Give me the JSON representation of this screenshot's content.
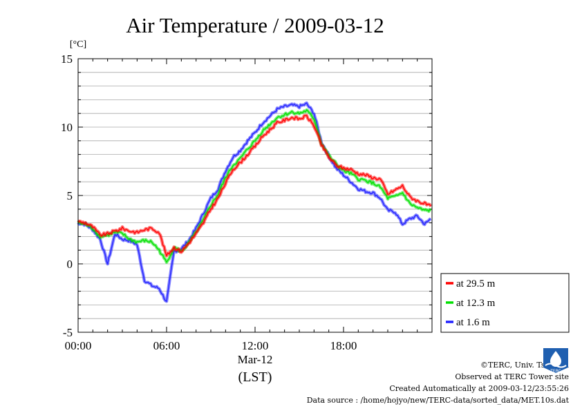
{
  "chart_data": {
    "type": "line",
    "title": "Air Temperature / 2009-03-12",
    "ylabel": "[°C]",
    "xlabel": "Mar-12",
    "xunit": "(LST)",
    "ylim": [
      -5,
      15
    ],
    "yticks": [
      "15",
      "10",
      "5",
      "0",
      "-5"
    ],
    "xlim": [
      "00:00",
      "24:00"
    ],
    "xticks": [
      "00:00",
      "06:00",
      "12:00",
      "18:00"
    ],
    "grid": true,
    "legend_position": "right",
    "x": [
      "00:00",
      "00:30",
      "01:00",
      "01:30",
      "02:00",
      "02:30",
      "03:00",
      "03:30",
      "04:00",
      "04:30",
      "05:00",
      "05:30",
      "06:00",
      "06:30",
      "07:00",
      "07:30",
      "08:00",
      "08:30",
      "09:00",
      "09:30",
      "10:00",
      "10:30",
      "11:00",
      "11:30",
      "12:00",
      "12:30",
      "13:00",
      "13:30",
      "14:00",
      "14:30",
      "15:00",
      "15:30",
      "16:00",
      "16:30",
      "17:00",
      "17:30",
      "18:00",
      "18:30",
      "19:00",
      "19:30",
      "20:00",
      "20:30",
      "21:00",
      "21:30",
      "22:00",
      "22:30",
      "23:00",
      "23:30",
      "23:55"
    ],
    "series": [
      {
        "name": "at 29.5 m",
        "color": "#ff0000",
        "values": [
          3.1,
          3.0,
          2.7,
          2.1,
          2.2,
          2.4,
          2.6,
          2.4,
          2.3,
          2.5,
          2.6,
          2.3,
          0.6,
          1.2,
          0.9,
          1.5,
          2.2,
          3.0,
          4.0,
          4.8,
          5.9,
          6.9,
          7.4,
          8.0,
          8.6,
          9.3,
          9.8,
          10.3,
          10.5,
          10.7,
          10.6,
          10.8,
          10.1,
          8.7,
          7.8,
          7.2,
          7.0,
          6.9,
          6.6,
          6.5,
          6.3,
          6.2,
          5.1,
          5.4,
          5.7,
          4.9,
          4.6,
          4.4,
          4.2
        ]
      },
      {
        "name": "at 12.3 m",
        "color": "#00e000",
        "values": [
          3.0,
          2.9,
          2.6,
          2.0,
          2.1,
          2.3,
          2.2,
          1.8,
          1.6,
          1.7,
          1.6,
          1.0,
          0.1,
          1.2,
          0.9,
          1.5,
          2.3,
          3.2,
          4.3,
          5.1,
          6.3,
          7.2,
          7.7,
          8.4,
          9.0,
          9.7,
          10.2,
          10.7,
          10.9,
          11.1,
          11.0,
          11.2,
          10.6,
          8.8,
          7.9,
          7.3,
          6.8,
          6.6,
          6.2,
          6.1,
          5.9,
          5.6,
          4.8,
          4.9,
          5.2,
          4.4,
          4.1,
          3.9,
          3.9
        ]
      },
      {
        "name": "at 1.6 m",
        "color": "#2020ff",
        "values": [
          3.0,
          2.9,
          2.5,
          1.8,
          0.0,
          2.2,
          1.8,
          1.7,
          1.4,
          -1.2,
          -1.6,
          -1.8,
          -2.8,
          0.9,
          1.1,
          1.7,
          2.6,
          3.7,
          4.8,
          5.5,
          6.8,
          7.8,
          8.3,
          9.0,
          9.6,
          10.3,
          10.8,
          11.3,
          11.5,
          11.6,
          11.5,
          11.7,
          11.0,
          8.9,
          7.9,
          7.0,
          6.5,
          6.0,
          5.5,
          5.3,
          5.2,
          4.8,
          3.9,
          3.8,
          2.9,
          3.3,
          3.5,
          2.9,
          3.3
        ]
      }
    ]
  },
  "credits": {
    "copyright": "©TERC, Univ. Tsukuba",
    "site": "Observed at TERC Tower site",
    "created": "Created Automatically at 2009-03-12/23:55:26",
    "source": "Data source : /home/hojyo/new/TERC-data/sorted_data/MET.10s.dat"
  },
  "logo_text": "TERC"
}
